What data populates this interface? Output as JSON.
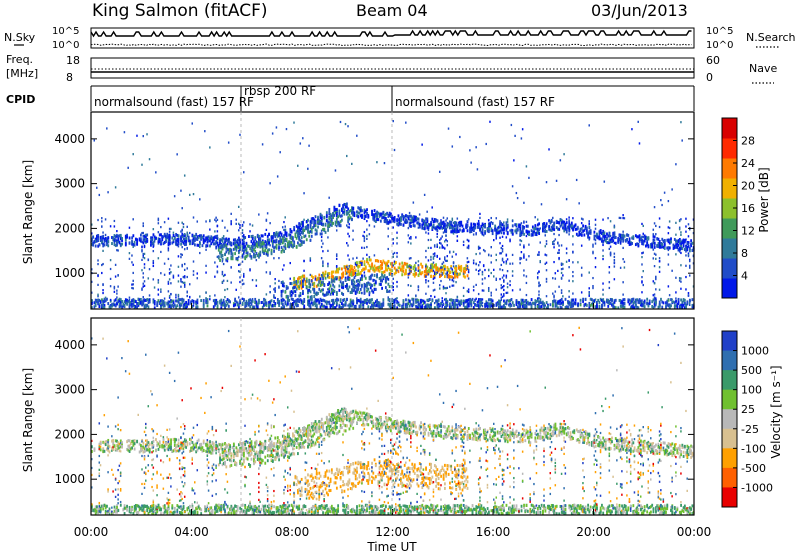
{
  "header": {
    "title": "King Salmon (fitACF)",
    "beam": "Beam 04",
    "date": "03/Jun/2013"
  },
  "noise_panel": {
    "left_label": "N.Sky",
    "right_label": "N.Search",
    "left_ticks": [
      "10^5",
      "10^0"
    ],
    "right_ticks": [
      "10^5",
      "10^0"
    ]
  },
  "freq_panel": {
    "left_label_1": "Freq.",
    "left_label_2": "[MHz]",
    "right_label": "Nave",
    "left_ticks": [
      "18",
      "8"
    ],
    "right_ticks": [
      "60",
      "0"
    ]
  },
  "cpid": {
    "label": "CPID",
    "segments": [
      {
        "label": "normalsound (fast) 157 RF",
        "start_h": 0,
        "end_h": 6
      },
      {
        "label": "rbsp 200 RF",
        "start_h": 6,
        "end_h": 12
      },
      {
        "label": "normalsound (fast) 157 RF",
        "start_h": 12,
        "end_h": 24
      }
    ]
  },
  "colors": {
    "power": [
      "#0018e8",
      "#204cc8",
      "#2f7a9a",
      "#3f9a5a",
      "#8cc02c",
      "#f0b000",
      "#ff7a00",
      "#ff2a00",
      "#d80000"
    ],
    "velocity": [
      "#2040c8",
      "#2f6fb0",
      "#3a9a6a",
      "#70c030",
      "#b8b8b8",
      "#d8c090",
      "#ffa000",
      "#ff6000",
      "#e80000"
    ]
  },
  "chart_data": [
    {
      "type": "heatmap",
      "quantity": "power",
      "ylabel": "Slant Range [km]",
      "y_ticks": [
        1000,
        2000,
        3000,
        4000
      ],
      "ylim": [
        200,
        4600
      ],
      "xlim": [
        0,
        24
      ],
      "colorbar_label": "Power [dB]",
      "colorbar_ticks": [
        4,
        8,
        12,
        16,
        20,
        24,
        28
      ],
      "colorbar_range": [
        0,
        32
      ],
      "features": [
        {
          "x": [
            0,
            4,
            5.5,
            7.5,
            10,
            11.5,
            14,
            17.5,
            18.5,
            20.5,
            24
          ],
          "y": [
            1720,
            1760,
            1640,
            1800,
            2450,
            2250,
            2050,
            1950,
            2100,
            1800,
            1600
          ],
          "width_km": 120,
          "level": 4
        },
        {
          "x": [
            5,
            6.5,
            8,
            9.5,
            10.5
          ],
          "y": [
            1450,
            1500,
            1700,
            2150,
            2350
          ],
          "width_km": 180,
          "level": 9
        },
        {
          "x": [
            8,
            9,
            10,
            11,
            12.5,
            15
          ],
          "y": [
            760,
            850,
            1000,
            1180,
            1080,
            1030
          ],
          "width_km": 140,
          "level": 20
        },
        {
          "x": [
            7.5,
            9.5,
            12
          ],
          "y": [
            600,
            700,
            800
          ],
          "width_km": 200,
          "level": 7
        },
        {
          "x": [
            0,
            24
          ],
          "y": [
            300,
            300
          ],
          "width_km": 120,
          "level": 6
        }
      ]
    },
    {
      "type": "heatmap",
      "quantity": "velocity",
      "xlabel": "Time UT",
      "ylabel": "Slant Range [km]",
      "x_ticks": [
        "00:00",
        "04:00",
        "08:00",
        "12:00",
        "16:00",
        "20:00",
        "00:00"
      ],
      "y_ticks": [
        1000,
        2000,
        3000,
        4000
      ],
      "ylim": [
        200,
        4600
      ],
      "xlim": [
        0,
        24
      ],
      "colorbar_label": "Velocity [m s⁻¹]",
      "colorbar_ticks": [
        1000,
        500,
        100,
        25,
        -25,
        -100,
        -500,
        -1000
      ],
      "features": [
        {
          "x": [
            0,
            4,
            5.5,
            7.5,
            10,
            11.5,
            14,
            17.5,
            18.5,
            20.5,
            24
          ],
          "y": [
            1720,
            1760,
            1640,
            1800,
            2450,
            2250,
            2050,
            1950,
            2100,
            1800,
            1600
          ],
          "width_km": 140,
          "vel": 0
        },
        {
          "x": [
            5,
            6.5,
            8,
            9.5,
            10.5
          ],
          "y": [
            1450,
            1500,
            1700,
            2150,
            2350
          ],
          "width_km": 200,
          "vel": 0
        },
        {
          "x": [
            8,
            9,
            10,
            11,
            12.5,
            15
          ],
          "y": [
            780,
            870,
            1000,
            1180,
            1100,
            1030
          ],
          "width_km": 280,
          "vel": -300
        },
        {
          "x": [
            0,
            24
          ],
          "y": [
            300,
            300
          ],
          "width_km": 120,
          "vel": 50
        }
      ]
    }
  ]
}
